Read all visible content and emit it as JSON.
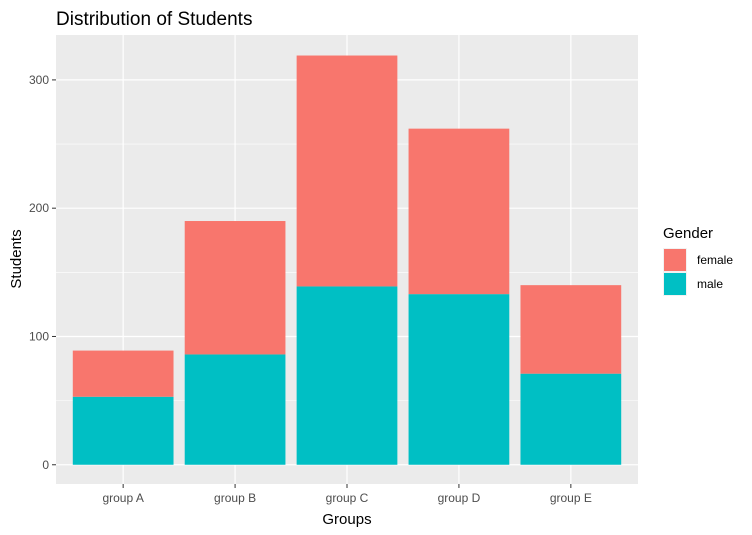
{
  "chart_data": {
    "type": "bar",
    "stacked": true,
    "title": "Distribution of Students",
    "xlabel": "Groups",
    "ylabel": "Students",
    "categories": [
      "group A",
      "group B",
      "group C",
      "group D",
      "group E"
    ],
    "series": [
      {
        "name": "female",
        "color": "#F8766D",
        "values": [
          36,
          104,
          180,
          129,
          69
        ]
      },
      {
        "name": "male",
        "color": "#00BFC4",
        "values": [
          53,
          86,
          139,
          133,
          71
        ]
      }
    ],
    "stack_order_bottom_to_top": [
      "male",
      "female"
    ],
    "yticks": [
      0,
      100,
      200,
      300
    ],
    "ylim": [
      -15,
      335
    ],
    "grid": true,
    "legend": {
      "title": "Gender",
      "placement": "right"
    }
  }
}
